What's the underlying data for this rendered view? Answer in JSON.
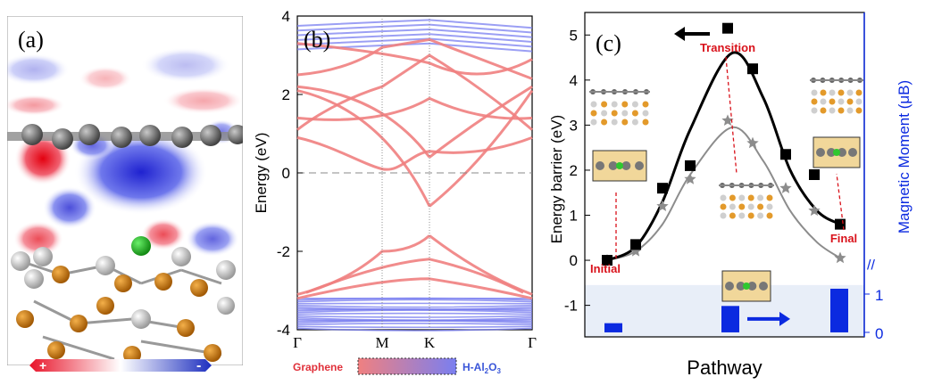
{
  "panel_a": {
    "label": "(a)",
    "colorbar": {
      "plus": "+",
      "minus": "-",
      "pos_color": "#e8142a",
      "neg_color": "#1d2fbf"
    }
  },
  "panel_b": {
    "label": "(b)",
    "ylabel": "Energy (eV)",
    "yticks": [
      "4",
      "2",
      "0",
      "-2",
      "-4"
    ],
    "kpoints": [
      "Γ",
      "M",
      "K",
      "Γ"
    ],
    "legend_left": "Graphene",
    "legend_right": "H-Al",
    "legend_right_sub1": "2",
    "legend_right_mid": "O",
    "legend_right_sub2": "3",
    "colors": {
      "graphene": "#f08080",
      "substrate": "#7a7ff0"
    }
  },
  "panel_c": {
    "label": "(c)",
    "ylabel": "Energy barrier (eV)",
    "ylabel_right": "Magnetic Moment (μB)",
    "xlabel": "Pathway",
    "yticks": [
      "5",
      "4",
      "3",
      "2",
      "1",
      "0",
      "-1"
    ],
    "right_ticks": [
      "1",
      "0"
    ],
    "annotations": {
      "initial": "Initial",
      "transition": "Transition",
      "final": "Final"
    },
    "colors": {
      "energy": "#000000",
      "secondary": "#8c8c8c",
      "moment": "#0b2ae0",
      "annotation": "#d9121b"
    }
  },
  "chart_data": [
    {
      "type": "line",
      "title": "",
      "xlabel": "",
      "ylabel": "Energy barrier (eV)",
      "ylim": [
        -1.7,
        5.5
      ],
      "x": [
        0,
        1,
        2,
        3,
        4,
        5,
        6,
        7,
        8,
        9
      ],
      "series": [
        {
          "values": [
            0.0,
            0.35,
            1.6,
            2.1,
            5.15,
            4.25,
            2.35,
            1.9,
            0.8,
            null
          ],
          "marker": "square",
          "color": "#000000"
        },
        {
          "values": [
            0.0,
            0.2,
            1.2,
            1.8,
            3.1,
            2.6,
            1.6,
            1.1,
            0.05,
            null
          ],
          "marker": "star",
          "color": "#8c8c8c"
        }
      ]
    },
    {
      "type": "bar",
      "ylabel": "Magnetic Moment (μB)",
      "ylim": [
        -0.1,
        1.1
      ],
      "categories": [
        "Initial",
        "Transition",
        "Final"
      ],
      "values": [
        0.1,
        0.55,
        1.0
      ]
    }
  ]
}
